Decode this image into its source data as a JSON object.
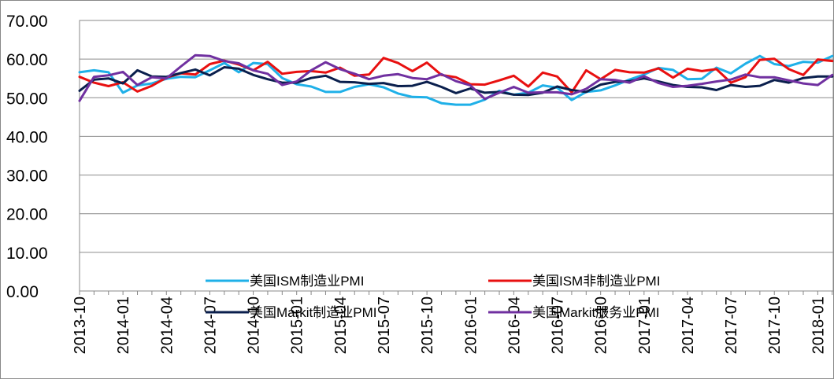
{
  "chart_data": {
    "type": "line",
    "title": "",
    "xlabel": "",
    "ylabel": "",
    "ylim": [
      0,
      70
    ],
    "y_ticks": [
      "0.00",
      "10.00",
      "20.00",
      "30.00",
      "40.00",
      "50.00",
      "60.00",
      "70.00"
    ],
    "grid": "horizontal",
    "legend_position": "inside-bottom",
    "x_ticks": [
      "2013-10",
      "2014-01",
      "2014-04",
      "2014-07",
      "2014-10",
      "2015-01",
      "2015-04",
      "2015-07",
      "2015-10",
      "2016-01",
      "2016-04",
      "2016-07",
      "2016-10",
      "2017-01",
      "2017-04",
      "2017-07",
      "2017-10",
      "2018-01"
    ],
    "x": [
      "2013-10",
      "2013-11",
      "2013-12",
      "2014-01",
      "2014-02",
      "2014-03",
      "2014-04",
      "2014-05",
      "2014-06",
      "2014-07",
      "2014-08",
      "2014-09",
      "2014-10",
      "2014-11",
      "2014-12",
      "2015-01",
      "2015-02",
      "2015-03",
      "2015-04",
      "2015-05",
      "2015-06",
      "2015-07",
      "2015-08",
      "2015-09",
      "2015-10",
      "2015-11",
      "2015-12",
      "2016-01",
      "2016-02",
      "2016-03",
      "2016-04",
      "2016-05",
      "2016-06",
      "2016-07",
      "2016-08",
      "2016-09",
      "2016-10",
      "2016-11",
      "2016-12",
      "2017-01",
      "2017-02",
      "2017-03",
      "2017-04",
      "2017-05",
      "2017-06",
      "2017-07",
      "2017-08",
      "2017-09",
      "2017-10",
      "2017-11",
      "2017-12",
      "2018-01",
      "2018-02"
    ],
    "series": [
      {
        "name": "美国ISM制造业PMI",
        "color": "#1fb0e8",
        "values": [
          56.6,
          57.1,
          56.6,
          51.3,
          53.2,
          53.7,
          54.9,
          55.4,
          55.3,
          57.1,
          59.0,
          56.6,
          59.0,
          58.7,
          55.1,
          53.5,
          52.9,
          51.5,
          51.5,
          52.8,
          53.5,
          52.7,
          51.1,
          50.2,
          50.1,
          48.6,
          48.2,
          48.2,
          49.5,
          51.8,
          50.8,
          51.3,
          53.2,
          52.6,
          49.4,
          51.5,
          51.9,
          53.2,
          54.7,
          56.0,
          57.7,
          57.2,
          54.8,
          54.9,
          57.8,
          56.3,
          58.8,
          60.8,
          58.7,
          58.2,
          59.3,
          59.1,
          60.8
        ]
      },
      {
        "name": "美国ISM非制造业PMI",
        "color": "#e81010",
        "values": [
          55.4,
          53.9,
          53.0,
          54.0,
          51.6,
          53.1,
          55.2,
          56.3,
          56.0,
          58.7,
          59.6,
          58.6,
          57.1,
          59.3,
          56.2,
          56.7,
          56.9,
          56.5,
          57.8,
          55.7,
          56.0,
          60.3,
          59.0,
          56.9,
          59.1,
          55.9,
          55.3,
          53.5,
          53.4,
          54.5,
          55.7,
          52.9,
          56.5,
          55.5,
          51.4,
          57.1,
          54.8,
          57.2,
          56.6,
          56.5,
          57.6,
          55.2,
          57.5,
          56.9,
          57.4,
          53.9,
          55.3,
          59.8,
          60.1,
          57.4,
          55.9,
          59.9,
          59.5
        ]
      },
      {
        "name": "美国Markit制造业PMI",
        "color": "#0a1f4d",
        "values": [
          51.8,
          54.7,
          55.0,
          53.7,
          57.1,
          55.5,
          55.4,
          56.4,
          57.3,
          55.8,
          57.9,
          57.5,
          55.9,
          54.8,
          53.9,
          53.9,
          55.1,
          55.7,
          54.1,
          54.0,
          53.6,
          53.8,
          53.0,
          53.1,
          54.1,
          52.8,
          51.2,
          52.4,
          51.3,
          51.5,
          50.8,
          50.7,
          51.3,
          52.9,
          52.0,
          51.5,
          53.4,
          54.1,
          54.3,
          55.0,
          54.2,
          53.3,
          52.8,
          52.7,
          52.0,
          53.3,
          52.8,
          53.1,
          54.6,
          53.9,
          55.1,
          55.5,
          55.5
        ]
      },
      {
        "name": "美国Markit服务业PMI",
        "color": "#7030a0",
        "values": [
          49.2,
          55.4,
          55.8,
          56.7,
          53.3,
          55.3,
          55.0,
          58.1,
          61.0,
          60.8,
          59.5,
          58.9,
          57.1,
          56.2,
          53.3,
          54.2,
          57.1,
          59.2,
          57.4,
          56.2,
          54.8,
          55.7,
          56.1,
          55.1,
          54.8,
          56.1,
          54.3,
          53.2,
          49.7,
          51.3,
          52.8,
          51.3,
          51.4,
          51.4,
          50.9,
          52.3,
          54.8,
          54.6,
          53.9,
          55.6,
          53.8,
          52.8,
          53.1,
          53.6,
          54.2,
          54.7,
          56.0,
          55.3,
          55.3,
          54.5,
          53.7,
          53.3,
          55.9
        ]
      }
    ]
  }
}
